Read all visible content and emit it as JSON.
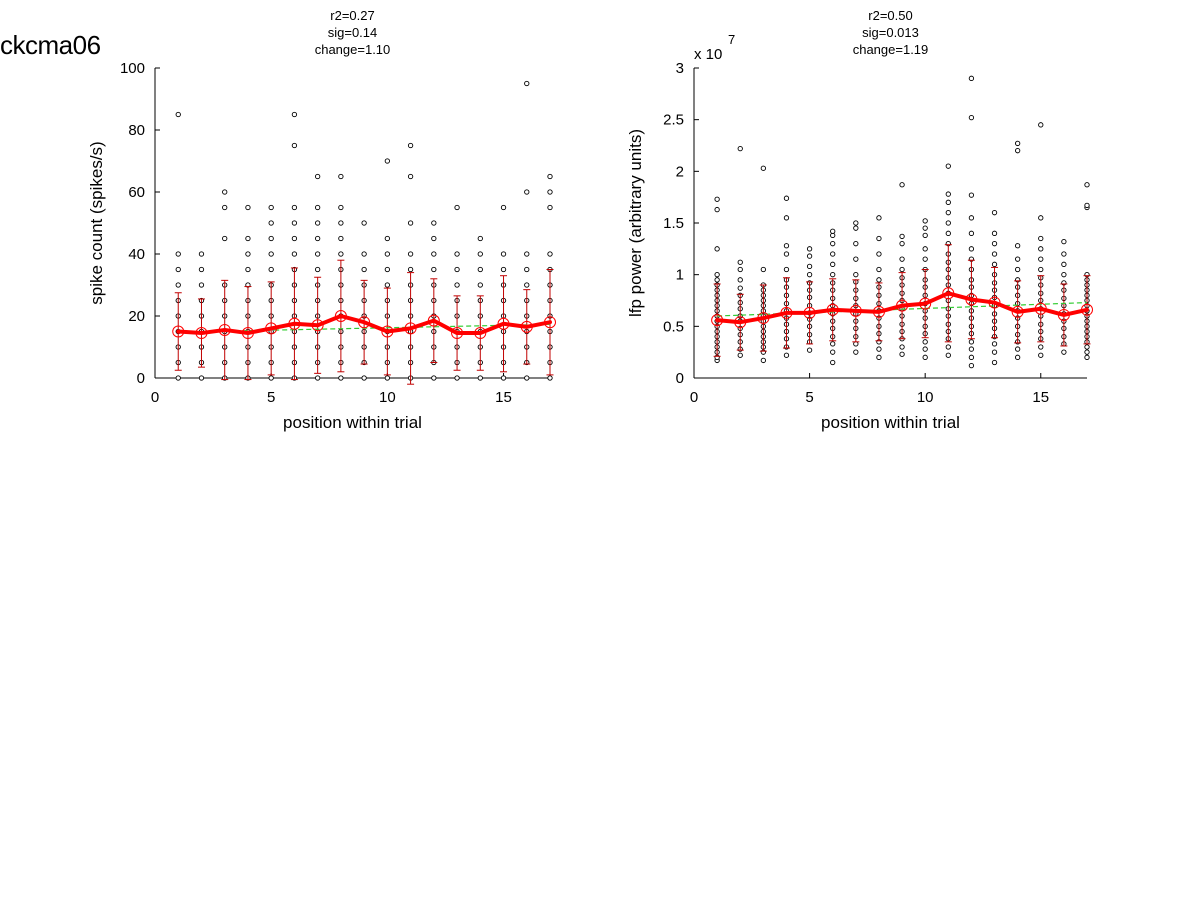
{
  "figure_title": "ckcma06",
  "colors": {
    "points": "#000000",
    "mean_line": "#ff0000",
    "error_bars": "#c00000",
    "fit_line": "#33cc33"
  },
  "chart_data": [
    {
      "type": "scatter",
      "stats": [
        "r2=0.27",
        "sig=0.14",
        "change=1.10"
      ],
      "xlabel": "position within trial",
      "ylabel": "spike count (spikes/s)",
      "exponent_label": "",
      "xlim": [
        0,
        17
      ],
      "ylim": [
        0,
        100
      ],
      "xticks": [
        0,
        5,
        10,
        15
      ],
      "yticks": [
        0,
        20,
        40,
        60,
        80,
        100
      ],
      "ytick_labels": [
        "0",
        "20",
        "40",
        "60",
        "80",
        "100"
      ],
      "grid": false,
      "points": [
        [
          1,
          [
            0,
            5,
            10,
            15,
            20,
            25,
            30,
            35,
            40,
            85
          ]
        ],
        [
          2,
          [
            0,
            5,
            10,
            15,
            20,
            25,
            30,
            35,
            40
          ]
        ],
        [
          3,
          [
            0,
            5,
            10,
            15,
            20,
            25,
            30,
            45,
            55,
            60
          ]
        ],
        [
          4,
          [
            0,
            5,
            10,
            15,
            20,
            25,
            30,
            35,
            40,
            45,
            55
          ]
        ],
        [
          5,
          [
            0,
            5,
            10,
            15,
            20,
            25,
            30,
            35,
            40,
            45,
            50,
            55
          ]
        ],
        [
          6,
          [
            0,
            5,
            10,
            15,
            20,
            25,
            30,
            35,
            40,
            45,
            50,
            55,
            75,
            85
          ]
        ],
        [
          7,
          [
            0,
            5,
            10,
            15,
            20,
            25,
            30,
            35,
            40,
            45,
            50,
            55,
            65
          ]
        ],
        [
          8,
          [
            0,
            5,
            10,
            15,
            20,
            25,
            30,
            35,
            40,
            45,
            50,
            55,
            65
          ]
        ],
        [
          9,
          [
            0,
            5,
            10,
            15,
            20,
            25,
            30,
            35,
            40,
            50
          ]
        ],
        [
          10,
          [
            0,
            5,
            10,
            15,
            20,
            25,
            30,
            35,
            40,
            45,
            70
          ]
        ],
        [
          11,
          [
            0,
            5,
            10,
            15,
            20,
            25,
            30,
            35,
            40,
            50,
            65,
            75
          ]
        ],
        [
          12,
          [
            0,
            5,
            10,
            15,
            20,
            25,
            30,
            35,
            40,
            45,
            50
          ]
        ],
        [
          13,
          [
            0,
            5,
            10,
            15,
            20,
            25,
            30,
            35,
            40,
            55
          ]
        ],
        [
          14,
          [
            0,
            5,
            10,
            15,
            20,
            25,
            30,
            35,
            40,
            45
          ]
        ],
        [
          15,
          [
            0,
            5,
            10,
            15,
            20,
            25,
            30,
            35,
            40,
            55
          ]
        ],
        [
          16,
          [
            0,
            5,
            10,
            15,
            20,
            25,
            30,
            35,
            40,
            60,
            95
          ]
        ],
        [
          17,
          [
            0,
            5,
            10,
            15,
            20,
            25,
            30,
            35,
            40,
            55,
            60,
            65
          ]
        ]
      ],
      "mean": {
        "x": [
          1,
          2,
          3,
          4,
          5,
          6,
          7,
          8,
          9,
          10,
          11,
          12,
          13,
          14,
          15,
          16,
          17
        ],
        "y": [
          15,
          14.5,
          15.5,
          14.5,
          16,
          17.5,
          17,
          20,
          18,
          15,
          16,
          18.5,
          14.5,
          14.5,
          17.5,
          16.5,
          18
        ]
      },
      "error": [
        12.5,
        11,
        16,
        15,
        15,
        18,
        15.5,
        18,
        13.5,
        14,
        18,
        13.5,
        12,
        12,
        15.5,
        12,
        17
      ],
      "fit": {
        "x": [
          1,
          17
        ],
        "y": [
          14.8,
          17.3
        ]
      }
    },
    {
      "type": "scatter",
      "stats": [
        "r2=0.50",
        "sig=0.013",
        "change=1.19"
      ],
      "xlabel": "position within trial",
      "ylabel": "lfp power (arbitrary units)",
      "exponent_label": "x 10",
      "exponent_power": "7",
      "xlim": [
        0,
        17
      ],
      "ylim": [
        0,
        3
      ],
      "xticks": [
        0,
        5,
        10,
        15
      ],
      "yticks": [
        0,
        0.5,
        1,
        1.5,
        2,
        2.5,
        3
      ],
      "ytick_labels": [
        "0",
        "0.5",
        "1",
        "1.5",
        "2",
        "2.5",
        "3"
      ],
      "grid": false,
      "points": [
        [
          1,
          [
            0.17,
            0.2,
            0.25,
            0.3,
            0.35,
            0.4,
            0.45,
            0.5,
            0.55,
            0.6,
            0.65,
            0.7,
            0.75,
            0.8,
            0.85,
            0.9,
            0.95,
            1.0,
            1.25,
            1.63,
            1.73
          ]
        ],
        [
          2,
          [
            0.22,
            0.28,
            0.35,
            0.42,
            0.48,
            0.55,
            0.6,
            0.67,
            0.73,
            0.8,
            0.87,
            0.95,
            1.05,
            1.12,
            2.22
          ]
        ],
        [
          3,
          [
            0.17,
            0.25,
            0.3,
            0.35,
            0.4,
            0.45,
            0.5,
            0.55,
            0.6,
            0.65,
            0.7,
            0.75,
            0.8,
            0.85,
            0.9,
            1.05,
            2.03
          ]
        ],
        [
          4,
          [
            0.22,
            0.3,
            0.38,
            0.45,
            0.52,
            0.58,
            0.65,
            0.72,
            0.8,
            0.88,
            0.95,
            1.05,
            1.2,
            1.28,
            1.55,
            1.74
          ]
        ],
        [
          5,
          [
            0.27,
            0.35,
            0.42,
            0.5,
            0.57,
            0.63,
            0.7,
            0.78,
            0.85,
            0.92,
            1.0,
            1.08,
            1.18,
            1.25
          ]
        ],
        [
          6,
          [
            0.15,
            0.25,
            0.33,
            0.4,
            0.48,
            0.55,
            0.62,
            0.7,
            0.77,
            0.85,
            0.92,
            1.0,
            1.1,
            1.2,
            1.3,
            1.38,
            1.42
          ]
        ],
        [
          7,
          [
            0.25,
            0.33,
            0.4,
            0.48,
            0.55,
            0.62,
            0.7,
            0.77,
            0.85,
            0.93,
            1.0,
            1.15,
            1.3,
            1.45,
            1.5
          ]
        ],
        [
          8,
          [
            0.2,
            0.28,
            0.35,
            0.43,
            0.5,
            0.58,
            0.65,
            0.72,
            0.8,
            0.88,
            0.95,
            1.05,
            1.2,
            1.35,
            1.55
          ]
        ],
        [
          9,
          [
            0.23,
            0.3,
            0.38,
            0.45,
            0.52,
            0.6,
            0.67,
            0.75,
            0.82,
            0.9,
            0.97,
            1.05,
            1.15,
            1.3,
            1.37,
            1.87
          ]
        ],
        [
          10,
          [
            0.2,
            0.28,
            0.35,
            0.43,
            0.5,
            0.58,
            0.65,
            0.72,
            0.8,
            0.88,
            0.95,
            1.05,
            1.15,
            1.25,
            1.38,
            1.45,
            1.52
          ]
        ],
        [
          11,
          [
            0.22,
            0.3,
            0.38,
            0.45,
            0.52,
            0.6,
            0.67,
            0.75,
            0.82,
            0.9,
            0.97,
            1.05,
            1.12,
            1.2,
            1.3,
            1.4,
            1.5,
            1.6,
            1.7,
            1.78,
            2.05
          ]
        ],
        [
          12,
          [
            0.12,
            0.2,
            0.28,
            0.35,
            0.43,
            0.5,
            0.58,
            0.65,
            0.72,
            0.8,
            0.88,
            0.95,
            1.05,
            1.15,
            1.25,
            1.4,
            1.55,
            1.77,
            2.52,
            2.9
          ]
        ],
        [
          13,
          [
            0.15,
            0.25,
            0.33,
            0.4,
            0.48,
            0.55,
            0.62,
            0.7,
            0.78,
            0.85,
            0.92,
            1.0,
            1.1,
            1.2,
            1.3,
            1.4,
            1.6
          ]
        ],
        [
          14,
          [
            0.2,
            0.28,
            0.35,
            0.42,
            0.5,
            0.58,
            0.65,
            0.72,
            0.8,
            0.88,
            0.95,
            1.05,
            1.15,
            1.28,
            2.2,
            2.27
          ]
        ],
        [
          15,
          [
            0.22,
            0.3,
            0.38,
            0.45,
            0.52,
            0.6,
            0.67,
            0.75,
            0.82,
            0.9,
            0.97,
            1.05,
            1.15,
            1.25,
            1.35,
            1.55,
            2.45
          ]
        ],
        [
          16,
          [
            0.25,
            0.33,
            0.4,
            0.48,
            0.55,
            0.62,
            0.7,
            0.77,
            0.85,
            0.92,
            1.0,
            1.1,
            1.2,
            1.32
          ]
        ],
        [
          17,
          [
            0.2,
            0.25,
            0.3,
            0.35,
            0.4,
            0.45,
            0.5,
            0.55,
            0.6,
            0.65,
            0.7,
            0.75,
            0.8,
            0.85,
            0.9,
            0.95,
            1.0,
            1.65,
            1.67,
            1.87
          ]
        ]
      ],
      "mean": {
        "x": [
          1,
          2,
          3,
          4,
          5,
          6,
          7,
          8,
          9,
          10,
          11,
          12,
          13,
          14,
          15,
          16,
          17
        ],
        "y": [
          0.56,
          0.54,
          0.58,
          0.63,
          0.63,
          0.66,
          0.65,
          0.64,
          0.7,
          0.72,
          0.82,
          0.76,
          0.73,
          0.64,
          0.67,
          0.61,
          0.66
        ]
      },
      "error": [
        0.35,
        0.27,
        0.32,
        0.34,
        0.3,
        0.3,
        0.3,
        0.28,
        0.32,
        0.33,
        0.47,
        0.38,
        0.34,
        0.3,
        0.32,
        0.3,
        0.33
      ],
      "fit": {
        "x": [
          1,
          17
        ],
        "y": [
          0.6,
          0.73
        ]
      }
    }
  ]
}
